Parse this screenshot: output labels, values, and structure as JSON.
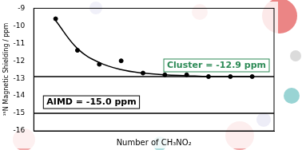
{
  "chart_data": {
    "type": "scatter",
    "x_label": "Number of CH₃NO₂",
    "y_label": "¹⁵N Magnetic Shielding / ppm",
    "x": [
      1,
      2,
      3,
      4,
      5,
      6,
      7,
      8,
      9,
      10
    ],
    "series": [
      {
        "type": "scatter",
        "color": "#000000",
        "marker": "circle",
        "values": [
          -9.6,
          -11.4,
          -12.2,
          -12.0,
          -12.7,
          -12.8,
          -12.8,
          -12.9,
          -12.9,
          -12.9
        ]
      },
      {
        "type": "line",
        "color": "#000000",
        "line_style": "solid",
        "values": [
          -9.7,
          -11.3,
          -12.1,
          -12.5,
          -12.7,
          -12.8,
          -12.85,
          -12.9,
          -12.9,
          -12.9
        ]
      }
    ],
    "xlim": [
      0,
      11
    ],
    "ylim": [
      -16,
      -9
    ],
    "yticks": [
      -16,
      -15,
      -14,
      -13,
      -12,
      -11,
      -10,
      -9
    ],
    "tick_labels": "y",
    "grid": false,
    "annotations": [
      {
        "text": "Cluster = -12.9 ppm",
        "y": -12.9,
        "color": "#2e8b57"
      },
      {
        "text": "AIMD = -15.0 ppm",
        "y": -15.0,
        "color": "#000000"
      }
    ]
  }
}
